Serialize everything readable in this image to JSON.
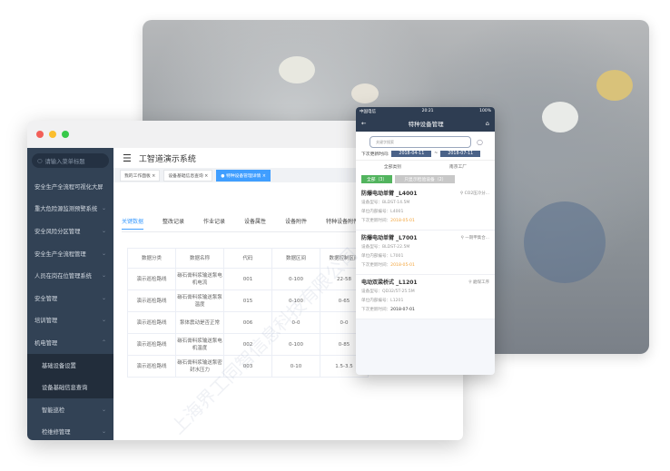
{
  "window": {
    "title": "工智道演示系统",
    "search_placeholder": "请输入菜单标题"
  },
  "sidebar": {
    "items": [
      {
        "label": "安全生产全流程可视化大屏",
        "chevron": ""
      },
      {
        "label": "重大危险源监测预警系统",
        "chevron": "⌄"
      },
      {
        "label": "安全风险分区管理",
        "chevron": "⌄"
      },
      {
        "label": "安全生产全流程管理",
        "chevron": "⌄"
      },
      {
        "label": "人员在岗在位管理系统",
        "chevron": "⌄"
      },
      {
        "label": "安全管理",
        "chevron": "⌄"
      },
      {
        "label": "培训管理",
        "chevron": "⌄"
      },
      {
        "label": "机电管理",
        "chevron": "⌃"
      }
    ],
    "sub_items": [
      {
        "label": "基础设备设置"
      },
      {
        "label": "设备基础信息查询"
      }
    ],
    "more_items": [
      {
        "label": "智能巡检",
        "chevron": "⌄"
      },
      {
        "label": "检维修管理",
        "chevron": "⌄"
      }
    ]
  },
  "tags": [
    {
      "label": "我的工作面板 ×"
    },
    {
      "label": "设备基础信息查询 ×"
    },
    {
      "label": "● 特种设备管理详情 ×"
    }
  ],
  "tabs": [
    {
      "label": "关键数据"
    },
    {
      "label": "整改记录"
    },
    {
      "label": "作业记录"
    },
    {
      "label": "设备属性"
    },
    {
      "label": "设备附件"
    },
    {
      "label": "特种设备附件"
    }
  ],
  "table": {
    "headers": [
      "数据分类",
      "数据名称",
      "代码",
      "数据区间",
      "数据控制区间"
    ],
    "rows": [
      [
        "演示巡检路线",
        "碳石膏料浆输送泵电机电流",
        "001",
        "0-100",
        "22-58"
      ],
      [
        "演示巡检路线",
        "碳石膏料浆输送泵泵温度",
        "015",
        "0-100",
        "0-65"
      ],
      [
        "演示巡检路线",
        "泵体震动是否正常",
        "006",
        "0-0",
        "0-0"
      ],
      [
        "演示巡检路线",
        "碳石膏料浆输送泵电机温度",
        "002",
        "0-100",
        "0-85"
      ],
      [
        "演示巡检路线",
        "碳石膏料浆输送泵密封水压力",
        "003",
        "0-10",
        "1.5-3.5"
      ]
    ]
  },
  "phone": {
    "carrier": "中国电信",
    "time": "20:21",
    "battery": "100%",
    "title": "特种设备管理",
    "search_placeholder": "关键字搜索",
    "next_update_label": "下次更新时间:",
    "date_from": "2018-04-11",
    "date_to": "2018-07-11",
    "filter_type": "全部类别",
    "filter_factory": "南京工厂",
    "btn_all": "全部（3）",
    "btn_special": "只显示检验设备（2）",
    "cards": [
      {
        "name": "防爆电动单臂 _L4001",
        "loc": "CO2压冷分...",
        "model": "设备型号：BLDST-14.5M",
        "code": "单位内部编号：L4001",
        "update_label": "下次更新时间：",
        "update": "2018-05-01",
        "overdue": true
      },
      {
        "name": "防爆电动单臂 _L7001",
        "loc": "一期甲集合...",
        "model": "设备型号：BLDST-22.5M",
        "code": "单位内部编号：L7001",
        "update_label": "下次更新时间：",
        "update": "2018-05-01",
        "overdue": true
      },
      {
        "name": "电动双梁桥式 _L1201",
        "loc": "磨煤工序",
        "model": "设备型号：QD32/5T-25.5M",
        "code": "单位内部编号：L1201",
        "update_label": "下次更新时间：",
        "update": "2018-07-01",
        "overdue": false
      }
    ]
  },
  "colors": {
    "sidebar": "#324255",
    "accent": "#409eff",
    "phone_nav": "#2e3d52",
    "overdue": "#f3a43b",
    "green": "#52b45e"
  }
}
